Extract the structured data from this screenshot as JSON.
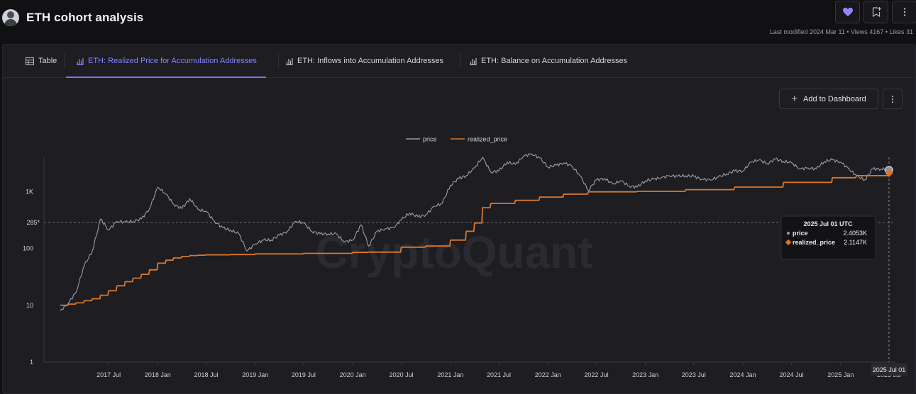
{
  "header": {
    "title": "ETH cohort analysis",
    "meta": "Last modified 2024 Mar 11 • Views 4167 • Likes 31"
  },
  "tabs": [
    {
      "label": "Table",
      "icon": "table-icon",
      "active": false
    },
    {
      "label": "ETH: Realized Price for Accumulation Addresses",
      "icon": "bar-chart-icon",
      "active": true
    },
    {
      "label": "ETH: Inflows into Accumulation Addresses",
      "icon": "bar-chart-icon",
      "active": false
    },
    {
      "label": "ETH: Balance on Accumulation Addresses",
      "icon": "bar-chart-icon",
      "active": false
    }
  ],
  "toolbar": {
    "add_label": "Add to Dashboard"
  },
  "colors": {
    "accent": "#7b73ff",
    "price": "#9c9ca4",
    "realized_price": "#d9772e",
    "background": "#1d1d22"
  },
  "chart_data": {
    "type": "line",
    "watermark": "CryptoQuant",
    "y_scale": "log",
    "ylim": [
      1,
      4000
    ],
    "xlim": [
      "2016-11-01",
      "2025-07-25"
    ],
    "ytick_labels": [
      "1",
      "10",
      "100",
      "1K"
    ],
    "ytick_values": [
      1,
      10,
      100,
      1000
    ],
    "xtick_labels": [
      "2017 Jul",
      "2018 Jan",
      "2018 Jul",
      "2019 Jan",
      "2019 Jul",
      "2020 Jan",
      "2020 Jul",
      "2021 Jan",
      "2021 Jul",
      "2022 Jan",
      "2022 Jul",
      "2023 Jan",
      "2023 Jul",
      "2024 Jan",
      "2024 Jul",
      "2025 Jan",
      "2025 Jul"
    ],
    "xtick_dates": [
      "2017-07-01",
      "2018-01-01",
      "2018-07-01",
      "2019-01-01",
      "2019-07-01",
      "2020-01-01",
      "2020-07-01",
      "2021-01-01",
      "2021-07-01",
      "2022-01-01",
      "2022-07-01",
      "2023-01-01",
      "2023-07-01",
      "2024-01-01",
      "2024-07-01",
      "2025-01-01",
      "2025-07-01"
    ],
    "legend": {
      "position": "top-center"
    },
    "series": [
      {
        "name": "price",
        "points": [
          [
            "2017-01-01",
            8
          ],
          [
            "2017-02-01",
            11
          ],
          [
            "2017-03-01",
            17
          ],
          [
            "2017-04-01",
            50
          ],
          [
            "2017-05-01",
            90
          ],
          [
            "2017-06-01",
            330
          ],
          [
            "2017-07-01",
            210
          ],
          [
            "2017-08-01",
            300
          ],
          [
            "2017-09-01",
            290
          ],
          [
            "2017-10-01",
            300
          ],
          [
            "2017-11-01",
            330
          ],
          [
            "2017-12-01",
            500
          ],
          [
            "2018-01-01",
            1200
          ],
          [
            "2018-02-01",
            900
          ],
          [
            "2018-03-01",
            600
          ],
          [
            "2018-04-01",
            500
          ],
          [
            "2018-05-01",
            750
          ],
          [
            "2018-06-01",
            480
          ],
          [
            "2018-07-01",
            450
          ],
          [
            "2018-08-01",
            300
          ],
          [
            "2018-09-01",
            230
          ],
          [
            "2018-10-01",
            210
          ],
          [
            "2018-11-01",
            180
          ],
          [
            "2018-12-01",
            90
          ],
          [
            "2019-01-01",
            120
          ],
          [
            "2019-02-01",
            140
          ],
          [
            "2019-03-01",
            140
          ],
          [
            "2019-04-01",
            170
          ],
          [
            "2019-05-01",
            200
          ],
          [
            "2019-06-01",
            300
          ],
          [
            "2019-07-01",
            280
          ],
          [
            "2019-08-01",
            200
          ],
          [
            "2019-09-01",
            180
          ],
          [
            "2019-10-01",
            180
          ],
          [
            "2019-11-01",
            180
          ],
          [
            "2019-12-01",
            130
          ],
          [
            "2020-01-01",
            140
          ],
          [
            "2020-02-01",
            260
          ],
          [
            "2020-03-01",
            110
          ],
          [
            "2020-04-01",
            200
          ],
          [
            "2020-05-01",
            220
          ],
          [
            "2020-06-01",
            230
          ],
          [
            "2020-07-01",
            320
          ],
          [
            "2020-08-01",
            420
          ],
          [
            "2020-09-01",
            360
          ],
          [
            "2020-10-01",
            390
          ],
          [
            "2020-11-01",
            550
          ],
          [
            "2020-12-01",
            620
          ],
          [
            "2021-01-01",
            1300
          ],
          [
            "2021-02-01",
            1700
          ],
          [
            "2021-03-01",
            1900
          ],
          [
            "2021-04-01",
            2600
          ],
          [
            "2021-05-01",
            4000
          ],
          [
            "2021-06-01",
            2200
          ],
          [
            "2021-07-01",
            2300
          ],
          [
            "2021-08-01",
            3300
          ],
          [
            "2021-09-01",
            3000
          ],
          [
            "2021-10-01",
            4200
          ],
          [
            "2021-11-01",
            4600
          ],
          [
            "2021-12-01",
            3900
          ],
          [
            "2022-01-01",
            2700
          ],
          [
            "2022-02-01",
            2900
          ],
          [
            "2022-03-01",
            3200
          ],
          [
            "2022-04-01",
            2800
          ],
          [
            "2022-05-01",
            1900
          ],
          [
            "2022-06-01",
            1050
          ],
          [
            "2022-07-01",
            1600
          ],
          [
            "2022-08-01",
            1700
          ],
          [
            "2022-09-01",
            1350
          ],
          [
            "2022-10-01",
            1550
          ],
          [
            "2022-11-01",
            1250
          ],
          [
            "2022-12-01",
            1200
          ],
          [
            "2023-01-01",
            1550
          ],
          [
            "2023-02-01",
            1650
          ],
          [
            "2023-03-01",
            1750
          ],
          [
            "2023-04-01",
            1900
          ],
          [
            "2023-05-01",
            1850
          ],
          [
            "2023-06-01",
            1900
          ],
          [
            "2023-07-01",
            1850
          ],
          [
            "2023-08-01",
            1650
          ],
          [
            "2023-09-01",
            1600
          ],
          [
            "2023-10-01",
            1800
          ],
          [
            "2023-11-01",
            2050
          ],
          [
            "2023-12-01",
            2300
          ],
          [
            "2024-01-01",
            2300
          ],
          [
            "2024-02-01",
            3300
          ],
          [
            "2024-03-01",
            3600
          ],
          [
            "2024-04-01",
            3100
          ],
          [
            "2024-05-01",
            3700
          ],
          [
            "2024-06-01",
            3400
          ],
          [
            "2024-07-01",
            3200
          ],
          [
            "2024-08-01",
            2500
          ],
          [
            "2024-09-01",
            2600
          ],
          [
            "2024-10-01",
            2500
          ],
          [
            "2024-11-01",
            3400
          ],
          [
            "2024-12-01",
            3600
          ],
          [
            "2025-01-01",
            3300
          ],
          [
            "2025-02-01",
            2500
          ],
          [
            "2025-03-01",
            1900
          ],
          [
            "2025-04-01",
            1600
          ],
          [
            "2025-05-01",
            2500
          ],
          [
            "2025-06-01",
            2500
          ],
          [
            "2025-07-01",
            2405.3
          ]
        ]
      },
      {
        "name": "realized_price",
        "points": [
          [
            "2017-01-01",
            10
          ],
          [
            "2017-02-01",
            10.5
          ],
          [
            "2017-03-01",
            11
          ],
          [
            "2017-04-01",
            12
          ],
          [
            "2017-05-01",
            13
          ],
          [
            "2017-06-01",
            15
          ],
          [
            "2017-07-01",
            18
          ],
          [
            "2017-08-01",
            22
          ],
          [
            "2017-09-01",
            26
          ],
          [
            "2017-10-01",
            30
          ],
          [
            "2017-11-01",
            35
          ],
          [
            "2017-12-01",
            42
          ],
          [
            "2018-01-01",
            55
          ],
          [
            "2018-02-01",
            62
          ],
          [
            "2018-03-01",
            68
          ],
          [
            "2018-04-01",
            72
          ],
          [
            "2018-05-01",
            75
          ],
          [
            "2018-06-01",
            76
          ],
          [
            "2018-07-01",
            77
          ],
          [
            "2018-10-01",
            78
          ],
          [
            "2019-01-01",
            80
          ],
          [
            "2019-07-01",
            82
          ],
          [
            "2020-01-01",
            85
          ],
          [
            "2020-03-01",
            86
          ],
          [
            "2020-07-01",
            105
          ],
          [
            "2020-10-01",
            110
          ],
          [
            "2021-01-01",
            140
          ],
          [
            "2021-03-01",
            200
          ],
          [
            "2021-04-01",
            280
          ],
          [
            "2021-05-01",
            520
          ],
          [
            "2021-06-01",
            620
          ],
          [
            "2021-09-01",
            700
          ],
          [
            "2021-12-01",
            800
          ],
          [
            "2022-03-01",
            900
          ],
          [
            "2022-06-01",
            990
          ],
          [
            "2022-12-01",
            1010
          ],
          [
            "2023-06-01",
            1080
          ],
          [
            "2023-12-01",
            1200
          ],
          [
            "2024-06-01",
            1450
          ],
          [
            "2024-12-01",
            1750
          ],
          [
            "2025-03-01",
            1900
          ],
          [
            "2025-07-01",
            2114.7
          ]
        ]
      }
    ],
    "annotations": {
      "y_marker_label": "285*",
      "y_marker_value": 285,
      "crosshair_date": "2025-07-01",
      "x_tooltip_label": "2025 Jul 01",
      "tooltip": {
        "title": "2025 Jul 01 UTC",
        "rows": [
          {
            "name": "price",
            "value": "2.4053K"
          },
          {
            "name": "realized_price",
            "value": "2.1147K"
          }
        ]
      }
    }
  }
}
